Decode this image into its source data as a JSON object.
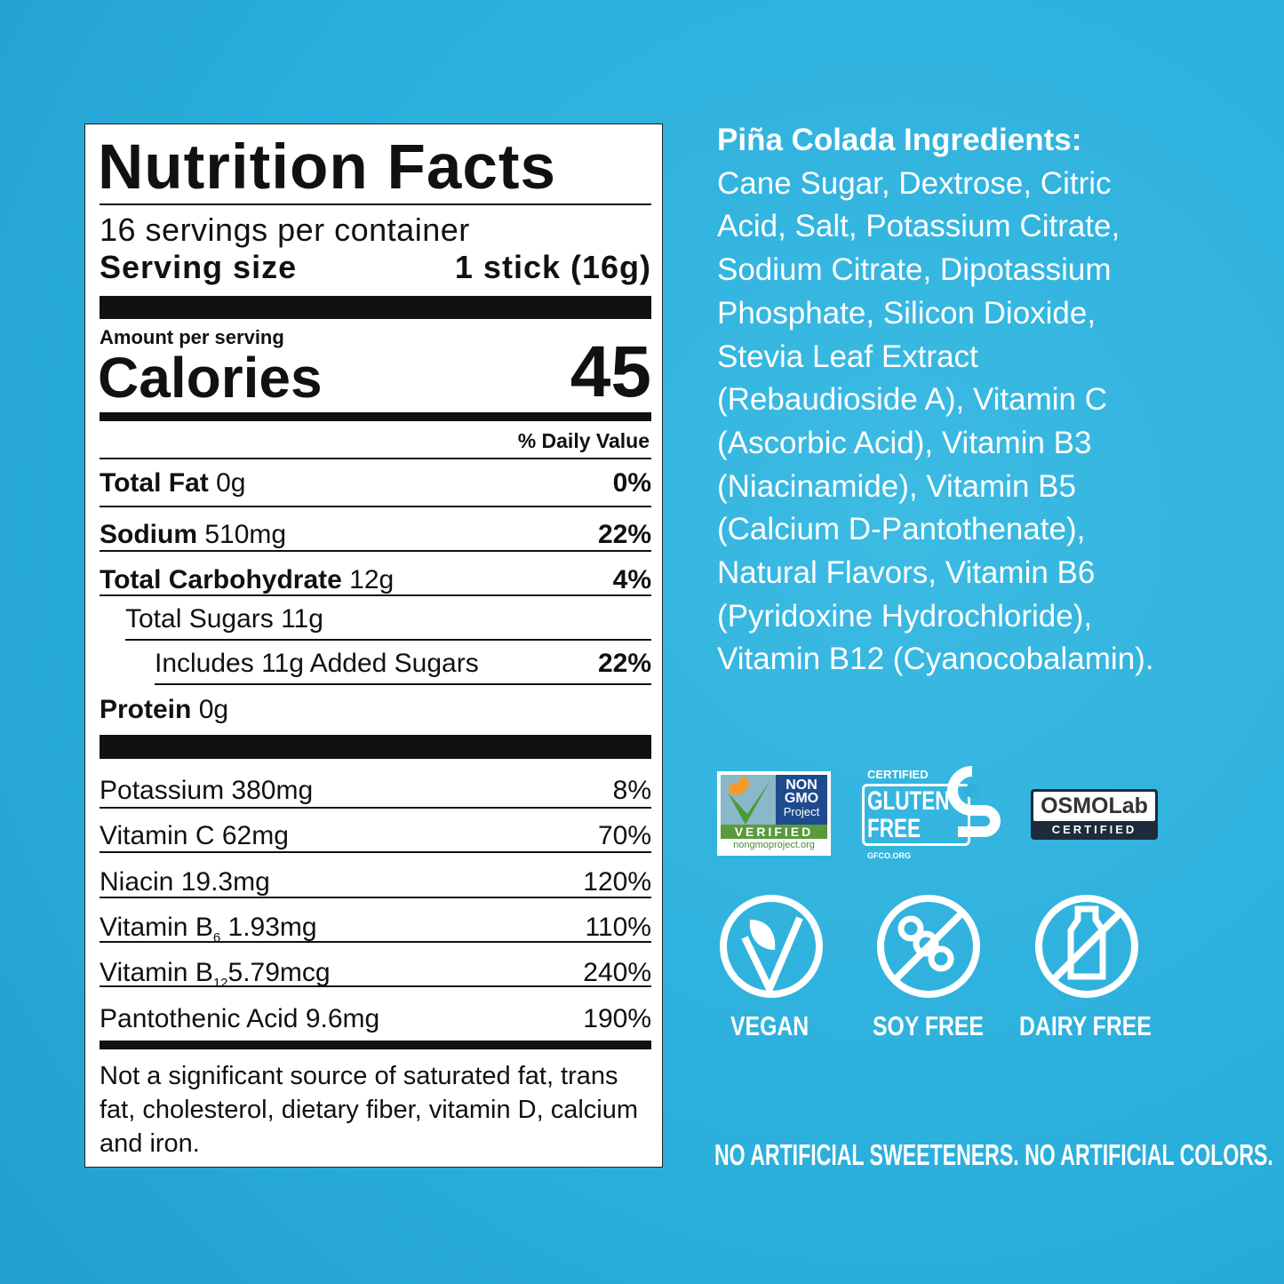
{
  "label": {
    "title": "Nutrition Facts",
    "servings": "16 servings per container",
    "serving_size_label": "Serving size",
    "serving_size_value": "1 stick (16g)",
    "amount_per_serving": "Amount per serving",
    "calories_label": "Calories",
    "calories_value": "45",
    "dv_header": "% Daily Value",
    "nutrients": [
      {
        "name": "Total Fat",
        "amount": "0g",
        "dv": "0%"
      },
      {
        "name": "Sodium",
        "amount": "510mg",
        "dv": "22%"
      },
      {
        "name": "Total Carbohydrate",
        "amount": "12g",
        "dv": "4%"
      },
      {
        "name": "Total Sugars 11g",
        "amount": "",
        "dv": ""
      },
      {
        "name": "Includes 11g Added Sugars",
        "amount": "",
        "dv": "22%"
      },
      {
        "name": "Protein",
        "amount": "0g",
        "dv": ""
      }
    ],
    "vitamins": [
      {
        "name": "Potassium",
        "amount": "380mg",
        "dv": "8%"
      },
      {
        "name": "Vitamin C",
        "amount": "62mg",
        "dv": "70%"
      },
      {
        "name": "Niacin",
        "amount": "19.3mg",
        "dv": "120%"
      },
      {
        "name": "Vitamin B",
        "sub": "6",
        "amount": "1.93mg",
        "dv": "110%"
      },
      {
        "name": "Vitamin B",
        "sub": "12",
        "amount": "5.79mcg",
        "dv": "240%"
      },
      {
        "name": "Pantothenic Acid",
        "amount": "9.6mg",
        "dv": "190%"
      }
    ],
    "footnote": "Not a significant source of saturated fat, trans fat, cholesterol, dietary fiber, vitamin D, calcium and iron."
  },
  "ingredients": {
    "heading": "Piña Colada Ingredients:",
    "lines": [
      "Cane Sugar, Dextrose, Citric",
      "Acid, Salt, Potassium Citrate,",
      "Sodium Citrate, Dipotassium",
      "Phosphate, Silicon Dioxide,",
      "Stevia Leaf Extract",
      "(Rebaudioside A), Vitamin C",
      "(Ascorbic Acid), Vitamin B3",
      "(Niacinamide), Vitamin B5",
      "(Calcium D-Pantothenate),",
      "Natural Flavors, Vitamin B6",
      "(Pyridoxine Hydrochloride),",
      "Vitamin B12 (Cyanocobalamin)."
    ]
  },
  "certifications": {
    "nongmo": {
      "line1": "NON",
      "line2": "GMO",
      "line3": "Project",
      "verified": "VERIFIED",
      "url": "nongmoproject.org"
    },
    "gluten": {
      "certified": "CERTIFIED",
      "line1": "GLUTEN",
      "line2": "FREE",
      "url": "GFCO.ORG"
    },
    "osmo": {
      "brand": "OSMOLab",
      "certified": "CERTIFIED"
    }
  },
  "badges": [
    "VEGAN",
    "SOY FREE",
    "DAIRY FREE"
  ],
  "tagline": "NO ARTIFICIAL SWEETENERS. NO ARTIFICIAL COLORS.",
  "colors": {
    "background": "#2eb1dd",
    "label": "#ffffff",
    "ink": "#111111"
  }
}
